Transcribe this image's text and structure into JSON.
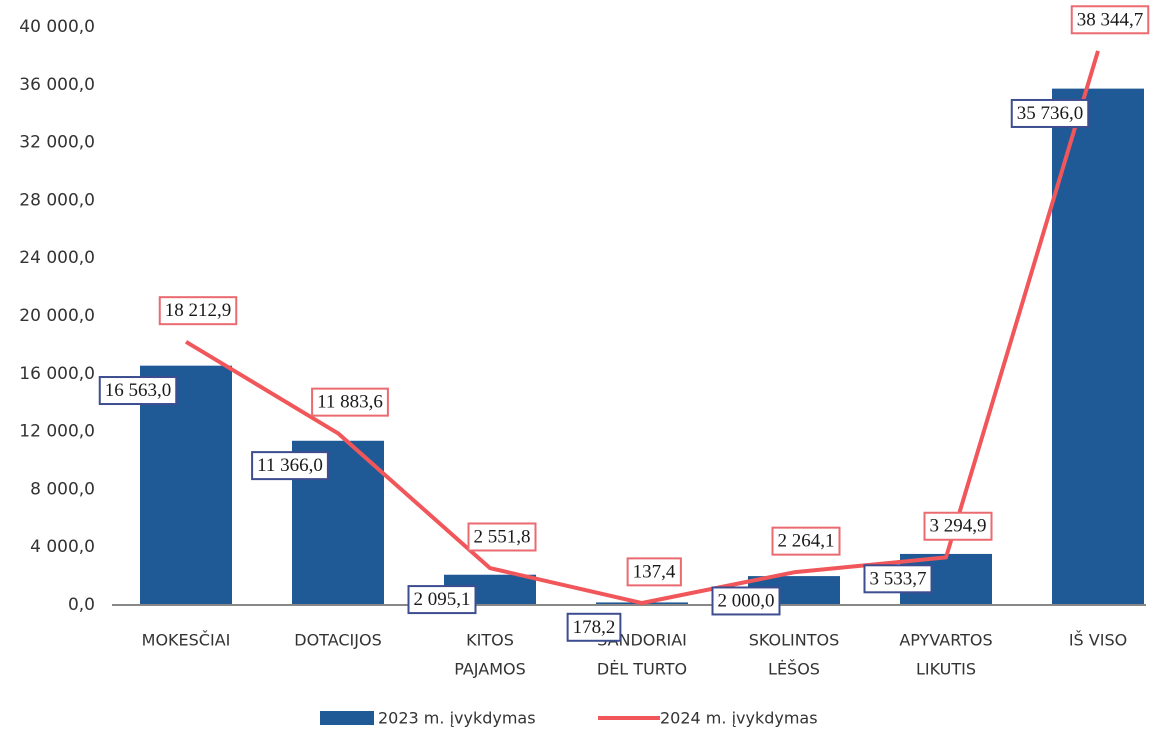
{
  "chart_data": {
    "type": "bar_line",
    "categories": [
      [
        "MOKESČIAI"
      ],
      [
        "DOTACIJOS"
      ],
      [
        "KITOS",
        "PAJAMOS"
      ],
      [
        "SANDORIAI",
        "DĖL TURTO"
      ],
      [
        "SKOLINTOS",
        "LĖŠOS"
      ],
      [
        "APYVARTOS",
        "LIKUTIS"
      ],
      [
        "IŠ VISO"
      ]
    ],
    "series": [
      {
        "name": "2023 m. įvykdymas",
        "type": "bar",
        "color": "#1f5a96",
        "values": [
          16563.0,
          11366.0,
          2095.1,
          178.2,
          2000.0,
          3533.7,
          35736.0
        ],
        "value_labels": [
          "16 563,0",
          "11 366,0",
          "2 095,1",
          "178,2",
          "2 000,0",
          "3 533,7",
          "35 736,0"
        ]
      },
      {
        "name": "2024 m. įvykdymas",
        "type": "line",
        "color": "#f0565a",
        "values": [
          18212.9,
          11883.6,
          2551.8,
          137.4,
          2264.1,
          3294.9,
          38344.7
        ],
        "value_labels": [
          "18 212,9",
          "11 883,6",
          "2 551,8",
          "137,4",
          "2 264,1",
          "3 294,9",
          "38 344,7"
        ]
      }
    ],
    "ylim": [
      0,
      40000
    ],
    "yticks": [
      {
        "value": 0,
        "label": "0,0"
      },
      {
        "value": 4000,
        "label": "4 000,0"
      },
      {
        "value": 8000,
        "label": "8 000,0"
      },
      {
        "value": 12000,
        "label": "12 000,0"
      },
      {
        "value": 16000,
        "label": "16 000,0"
      },
      {
        "value": 20000,
        "label": "20 000,0"
      },
      {
        "value": 24000,
        "label": "24 000,0"
      },
      {
        "value": 28000,
        "label": "28 000,0"
      },
      {
        "value": 32000,
        "label": "32 000,0"
      },
      {
        "value": 36000,
        "label": "36 000,0"
      },
      {
        "value": 40000,
        "label": "40 000,0"
      }
    ],
    "legend": "bottom"
  }
}
